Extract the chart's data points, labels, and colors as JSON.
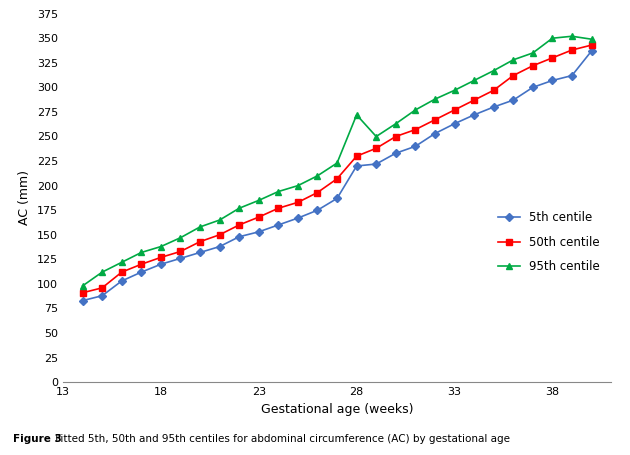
{
  "title": "",
  "xlabel": "Gestational age (weeks)",
  "ylabel": "AC (mm)",
  "caption_bold": "Figure 3",
  "caption_normal": " Fitted 5th, 50th and 95th centiles for abdominal circumference (AC) by gestational age",
  "xlim": [
    13,
    41
  ],
  "ylim": [
    0,
    375
  ],
  "xticks": [
    13,
    18,
    23,
    28,
    33,
    38
  ],
  "yticks": [
    0,
    25,
    50,
    75,
    100,
    125,
    150,
    175,
    200,
    225,
    250,
    275,
    300,
    325,
    350,
    375
  ],
  "weeks": [
    14,
    15,
    16,
    17,
    18,
    19,
    20,
    21,
    22,
    23,
    24,
    25,
    26,
    27,
    28,
    29,
    30,
    31,
    32,
    33,
    34,
    35,
    36,
    37,
    38,
    39,
    40
  ],
  "p5": [
    83,
    88,
    103,
    112,
    120,
    126,
    132,
    138,
    148,
    153,
    160,
    167,
    175,
    187,
    220,
    222,
    233,
    240,
    253,
    263,
    272,
    280,
    287,
    300,
    307,
    312,
    337
  ],
  "p50": [
    91,
    96,
    112,
    120,
    127,
    133,
    143,
    150,
    160,
    168,
    177,
    183,
    193,
    207,
    230,
    238,
    250,
    257,
    267,
    277,
    287,
    297,
    312,
    322,
    330,
    338,
    343
  ],
  "p95": [
    98,
    112,
    122,
    132,
    138,
    147,
    158,
    165,
    177,
    185,
    194,
    200,
    210,
    223,
    272,
    250,
    263,
    277,
    288,
    297,
    307,
    317,
    328,
    335,
    350,
    352,
    349
  ],
  "color_p5": "#4472C4",
  "color_p50": "#FF0000",
  "color_p95": "#00AA44",
  "legend_labels": [
    "5th centile",
    "50th centile",
    "95th centile"
  ],
  "marker_p5": "D",
  "marker_p50": "s",
  "marker_p95": "^",
  "markersize": 4,
  "linewidth": 1.2,
  "bg_color": "#FFFFFF",
  "tick_fontsize": 8,
  "axis_label_fontsize": 9
}
